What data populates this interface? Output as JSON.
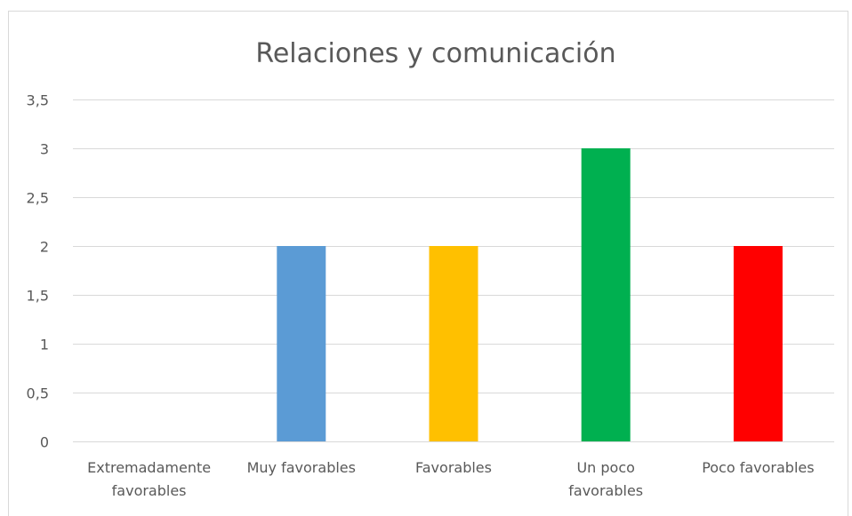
{
  "chart_data": {
    "type": "bar",
    "title": "Relaciones y comunicación",
    "categories": [
      [
        "Extremadamente",
        "favorables"
      ],
      [
        "Muy favorables"
      ],
      [
        "Favorables"
      ],
      [
        "Un poco",
        "favorables"
      ],
      [
        "Poco favorables"
      ]
    ],
    "values": [
      0,
      2,
      2,
      3,
      2
    ],
    "colors": [
      "#5b9bd5",
      "#5b9bd5",
      "#ffc000",
      "#00b050",
      "#ff0000"
    ],
    "ylim": [
      0,
      3.5
    ],
    "yticks": [
      "0",
      "0,5",
      "1",
      "1,5",
      "2",
      "2,5",
      "3",
      "3,5"
    ],
    "ytick_values": [
      0,
      0.5,
      1,
      1.5,
      2,
      2.5,
      3,
      3.5
    ],
    "grid": true,
    "legend": "none",
    "xlabel": "",
    "ylabel": ""
  }
}
